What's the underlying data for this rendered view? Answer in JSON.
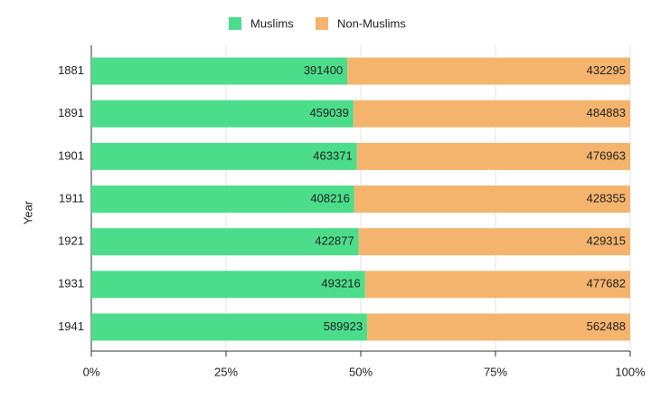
{
  "chart_data": {
    "type": "bar",
    "orientation": "horizontal",
    "stacked": "percent",
    "y_label": "Year",
    "categories": [
      "1881",
      "1891",
      "1901",
      "1911",
      "1921",
      "1931",
      "1941"
    ],
    "series": [
      {
        "name": "Muslims",
        "color": "#4cdd8b",
        "values": [
          391400,
          459039,
          463371,
          408216,
          422877,
          493216,
          589923
        ]
      },
      {
        "name": "Non-Muslims",
        "color": "#f5b46e",
        "values": [
          432295,
          484883,
          476963,
          428355,
          429315,
          477682,
          562488
        ]
      }
    ],
    "xlim": [
      0,
      100
    ],
    "xticks": [
      {
        "value": 0,
        "label": "0%"
      },
      {
        "value": 25,
        "label": "25%"
      },
      {
        "value": 50,
        "label": "50%"
      },
      {
        "value": 75,
        "label": "75%"
      },
      {
        "value": 100,
        "label": "100%"
      }
    ],
    "grid": true,
    "legend": "top"
  }
}
